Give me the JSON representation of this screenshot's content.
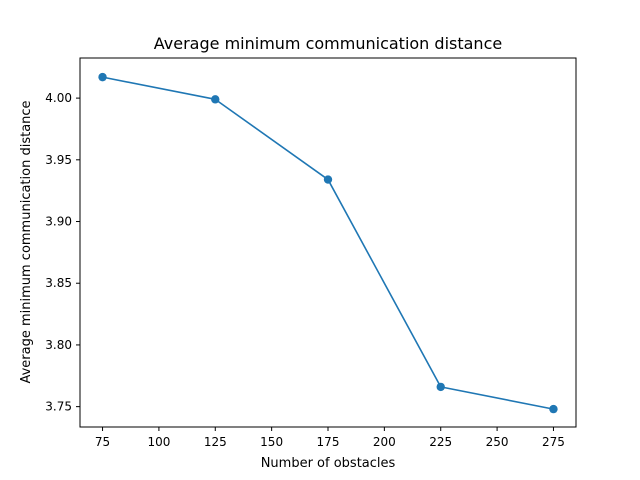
{
  "chart_data": {
    "type": "line",
    "title": "Average minimum communication distance",
    "xlabel": "Number of obstacles",
    "ylabel": "Average minimum communication distance",
    "x": [
      75,
      125,
      175,
      225,
      275
    ],
    "series": [
      {
        "values": [
          4.017,
          3.999,
          3.934,
          3.766,
          3.748
        ],
        "color": "#1f77b4",
        "marker": "circle"
      }
    ],
    "xlim": [
      65,
      285
    ],
    "ylim": [
      3.7335,
      4.0325
    ],
    "xticks": [
      75,
      100,
      125,
      150,
      175,
      200,
      225,
      250,
      275
    ],
    "xtick_labels": [
      "75",
      "100",
      "125",
      "150",
      "175",
      "200",
      "225",
      "250",
      "275"
    ],
    "yticks": [
      3.75,
      3.8,
      3.85,
      3.9,
      3.95,
      4.0
    ],
    "ytick_labels": [
      "3.75",
      "3.80",
      "3.85",
      "3.90",
      "3.95",
      "4.00"
    ],
    "grid": false,
    "legend": "none"
  }
}
